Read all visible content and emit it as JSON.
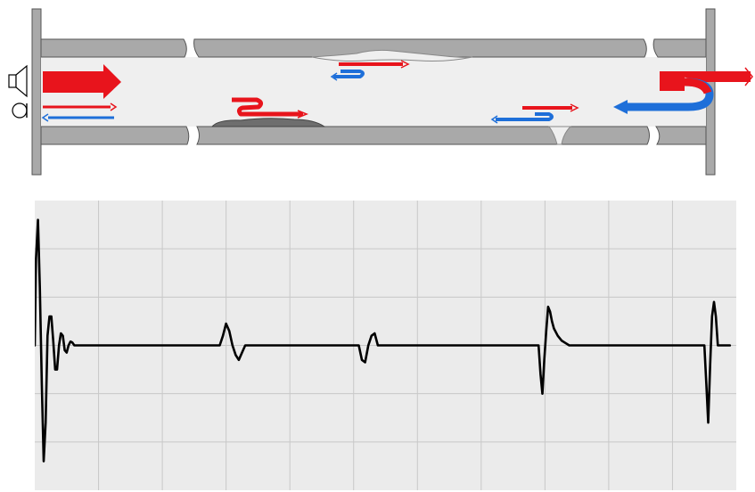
{
  "diagram": {
    "title": "",
    "kind": "acoustic-pipe-inspection",
    "components": [
      {
        "name": "speaker",
        "icon": "speaker-icon"
      },
      {
        "name": "microphone",
        "icon": "microphone-icon"
      },
      {
        "name": "pipe-section-left",
        "icon": "pipe-icon"
      },
      {
        "name": "pipe-section-middle",
        "icon": "pipe-icon"
      },
      {
        "name": "pipe-section-right",
        "icon": "pipe-icon"
      },
      {
        "name": "blockage-deposit",
        "icon": "deposit-icon"
      },
      {
        "name": "bulge-top",
        "icon": "bulge-icon"
      },
      {
        "name": "crack-bottom",
        "icon": "crack-icon"
      },
      {
        "name": "closed-end",
        "icon": "end-cap-icon"
      }
    ],
    "colors": {
      "incident": "#e8141c",
      "reflected": "#1e6fd9",
      "pipe_wall": "#a9a9a9",
      "pipe_interior": "#efefef",
      "deposit": "#6e6e6e",
      "trace": "#000000",
      "scope_bg": "#ebebeb",
      "scope_grid": "#c8c8c8"
    }
  },
  "chart_data": {
    "type": "line",
    "title": "",
    "xlabel": "",
    "ylabel": "",
    "grid": true,
    "grid_divisions": {
      "x": 11,
      "y": 6
    },
    "xlim": [
      0,
      11
    ],
    "ylim": [
      -3,
      3
    ],
    "series": [
      {
        "x": [
          0.0,
          0.02,
          0.05,
          0.08,
          0.11,
          0.14,
          0.17,
          0.2,
          0.23,
          0.26,
          0.29,
          0.32,
          0.35,
          0.38,
          0.41,
          0.44,
          0.47,
          0.5,
          0.53,
          0.56,
          0.59,
          0.62,
          0.65,
          0.7,
          2.9,
          2.95,
          3.0,
          3.05,
          3.1,
          3.15,
          3.2,
          3.25,
          3.3,
          3.35,
          3.4,
          3.45,
          3.5,
          3.6,
          5.08,
          5.13,
          5.18,
          5.23,
          5.28,
          5.33,
          5.38,
          5.43,
          5.48,
          5.53,
          5.6,
          7.9,
          7.93,
          7.96,
          7.99,
          8.02,
          8.05,
          8.08,
          8.11,
          8.14,
          8.2,
          8.26,
          8.32,
          8.38,
          8.44,
          8.6,
          10.5,
          10.53,
          10.56,
          10.59,
          10.62,
          10.65,
          10.68,
          10.71,
          10.74,
          10.77,
          10.8,
          10.9
        ],
        "y": [
          0.0,
          1.8,
          2.6,
          1.2,
          -0.8,
          -2.4,
          -1.6,
          0.2,
          0.6,
          0.6,
          0.1,
          -0.5,
          -0.5,
          0.0,
          0.25,
          0.2,
          -0.1,
          -0.15,
          0.0,
          0.08,
          0.06,
          0.0,
          0.0,
          0.0,
          0.0,
          0.2,
          0.45,
          0.3,
          0.0,
          -0.2,
          -0.3,
          -0.15,
          0.0,
          0.0,
          0.0,
          0.0,
          0.0,
          0.0,
          0.0,
          -0.3,
          -0.35,
          0.0,
          0.2,
          0.25,
          0.0,
          0.0,
          0.0,
          0.0,
          0.0,
          0.0,
          -0.6,
          -1.0,
          -0.3,
          0.3,
          0.8,
          0.7,
          0.5,
          0.35,
          0.2,
          0.1,
          0.05,
          0.0,
          0.0,
          0.0,
          0.0,
          -0.8,
          -1.6,
          -0.4,
          0.6,
          0.9,
          0.6,
          0.0,
          0.0,
          0.0,
          0.0,
          0.0
        ]
      }
    ]
  }
}
